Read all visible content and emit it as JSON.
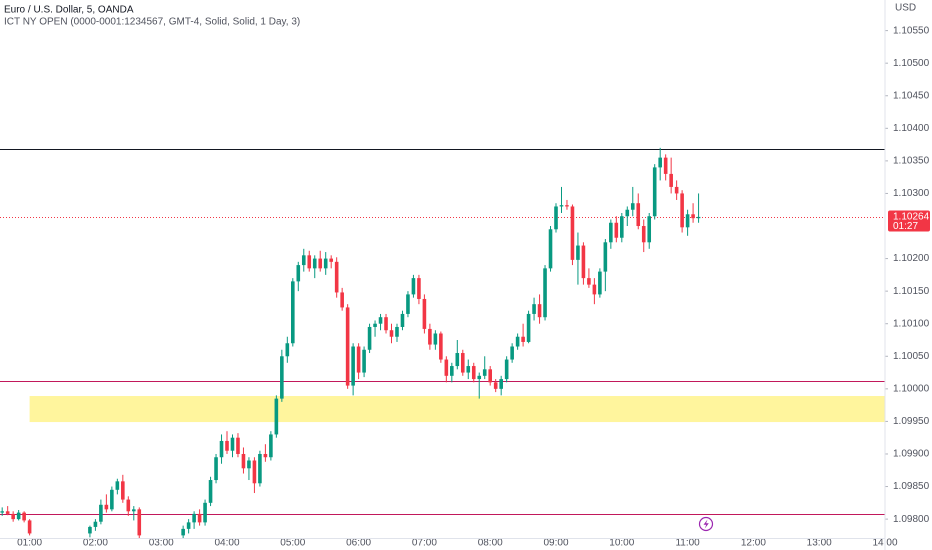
{
  "chart_data": {
    "type": "candlestick",
    "title": "Euro / U.S. Dollar, 5, OANDA",
    "subtitle": "ICT NY OPEN (0000-0001:1234567, GMT-4, Solid, Solid, 1 Day, 3)",
    "currency": "USD",
    "up_color": "#089981",
    "down_color": "#f23645",
    "xlim": [
      "00:33",
      "14:00"
    ],
    "xticks": [
      "01:00",
      "02:00",
      "03:00",
      "04:00",
      "05:00",
      "06:00",
      "07:00",
      "08:00",
      "09:00",
      "10:00",
      "11:00",
      "12:00",
      "13:00",
      "14:00"
    ],
    "ylim": [
      1.09771,
      1.10597
    ],
    "yticks": [
      {
        "value": 1.1055,
        "label": "1.10550"
      },
      {
        "value": 1.105,
        "label": "1.10500"
      },
      {
        "value": 1.1045,
        "label": "1.10450"
      },
      {
        "value": 1.104,
        "label": "1.10400"
      },
      {
        "value": 1.1035,
        "label": "1.10350"
      },
      {
        "value": 1.103,
        "label": "1.10300"
      },
      {
        "value": 1.102,
        "label": "1.10200"
      },
      {
        "value": 1.1015,
        "label": "1.10150"
      },
      {
        "value": 1.101,
        "label": "1.10100"
      },
      {
        "value": 1.1005,
        "label": "1.10050"
      },
      {
        "value": 1.1,
        "label": "1.10000"
      },
      {
        "value": 1.0995,
        "label": "1.09950"
      },
      {
        "value": 1.099,
        "label": "1.09900"
      },
      {
        "value": 1.0985,
        "label": "1.09850"
      },
      {
        "value": 1.098,
        "label": "1.09800"
      }
    ],
    "levels": [
      {
        "value": 1.10368,
        "color": "#131722"
      },
      {
        "value": 1.10012,
        "color": "#c2185b"
      },
      {
        "value": 1.09808,
        "color": "#c2185b"
      }
    ],
    "zone": {
      "low": 1.09949,
      "high": 1.09989,
      "start": "01:00",
      "color": "#fff59d"
    },
    "last_price": {
      "value": 1.10264,
      "countdown": "01:27",
      "color": "#f23645"
    },
    "x": [
      "00:35",
      "00:40",
      "00:45",
      "00:50",
      "00:55",
      "01:00",
      "01:55",
      "02:00",
      "02:05",
      "02:10",
      "02:15",
      "02:20",
      "02:25",
      "02:30",
      "02:35",
      "02:40",
      "03:20",
      "03:25",
      "03:30",
      "03:35",
      "03:40",
      "03:45",
      "03:50",
      "03:55",
      "04:00",
      "04:05",
      "04:10",
      "04:15",
      "04:20",
      "04:25",
      "04:30",
      "04:35",
      "04:40",
      "04:45",
      "04:50",
      "04:55",
      "05:00",
      "05:05",
      "05:10",
      "05:15",
      "05:20",
      "05:25",
      "05:30",
      "05:35",
      "05:40",
      "05:45",
      "05:50",
      "05:55",
      "06:00",
      "06:05",
      "06:10",
      "06:15",
      "06:20",
      "06:25",
      "06:30",
      "06:35",
      "06:40",
      "06:45",
      "06:50",
      "06:55",
      "07:00",
      "07:05",
      "07:10",
      "07:15",
      "07:20",
      "07:25",
      "07:30",
      "07:35",
      "07:40",
      "07:45",
      "07:50",
      "07:55",
      "08:00",
      "08:05",
      "08:10",
      "08:15",
      "08:20",
      "08:25",
      "08:30",
      "08:35",
      "08:40",
      "08:45",
      "08:50",
      "08:55",
      "09:00",
      "09:05",
      "09:10",
      "09:15",
      "09:20",
      "09:25",
      "09:30",
      "09:35",
      "09:40",
      "09:45",
      "09:50",
      "09:55",
      "10:00",
      "10:05",
      "10:10",
      "10:15",
      "10:20",
      "10:25",
      "10:30",
      "10:35",
      "10:40",
      "10:45",
      "10:50",
      "10:55",
      "11:00",
      "11:05",
      "11:10"
    ],
    "open": [
      1.0981,
      1.09812,
      1.09808,
      1.098,
      1.0981,
      1.09798,
      1.09778,
      1.09788,
      1.09796,
      1.09822,
      1.09815,
      1.09845,
      1.09858,
      1.0983,
      1.09812,
      1.09815,
      1.09775,
      1.09785,
      1.09795,
      1.09808,
      1.09795,
      1.09825,
      1.0986,
      1.09895,
      1.0992,
      1.09905,
      1.09925,
      1.099,
      1.09878,
      1.0989,
      1.09855,
      1.099,
      1.09895,
      1.0993,
      1.09985,
      1.1005,
      1.1007,
      1.10165,
      1.1019,
      1.10205,
      1.10185,
      1.102,
      1.10185,
      1.102,
      1.10195,
      1.10148,
      1.10125,
      1.10005,
      1.10065,
      1.10025,
      1.1006,
      1.10095,
      1.101,
      1.1011,
      1.1009,
      1.1008,
      1.10095,
      1.10115,
      1.10145,
      1.1017,
      1.10138,
      1.10092,
      1.10068,
      1.10085,
      1.10045,
      1.1002,
      1.10035,
      1.10055,
      1.10025,
      1.10035,
      1.10015,
      1.1002,
      1.1003,
      1.1001,
      1.1,
      1.10015,
      1.10045,
      1.10065,
      1.1008,
      1.10072,
      1.10115,
      1.1013,
      1.1011,
      1.10185,
      1.10245,
      1.1028,
      1.10282,
      1.1028,
      1.10198,
      1.1022,
      1.1017,
      1.1016,
      1.10145,
      1.1018,
      1.10225,
      1.10255,
      1.10232,
      1.10265,
      1.10275,
      1.10285,
      1.1025,
      1.10225,
      1.10265,
      1.1034,
      1.10355,
      1.1033,
      1.1031,
      1.103,
      1.10248,
      1.10268,
      1.10262
    ],
    "high": [
      1.09818,
      1.0982,
      1.09812,
      1.09814,
      1.09812,
      1.098,
      1.0979,
      1.098,
      1.0983,
      1.09838,
      1.0985,
      1.09862,
      1.09868,
      1.09835,
      1.0982,
      1.09818,
      1.0979,
      1.098,
      1.09812,
      1.09815,
      1.0983,
      1.09865,
      1.099,
      1.0993,
      1.09935,
      1.0993,
      1.09932,
      1.0991,
      1.09895,
      1.09895,
      1.09905,
      1.09915,
      1.09935,
      1.0999,
      1.1006,
      1.1008,
      1.1017,
      1.10195,
      1.10215,
      1.10212,
      1.10205,
      1.10212,
      1.1021,
      1.10205,
      1.10202,
      1.10155,
      1.1013,
      1.1007,
      1.1007,
      1.10065,
      1.101,
      1.10105,
      1.10115,
      1.10115,
      1.101,
      1.101,
      1.1012,
      1.1015,
      1.10175,
      1.10175,
      1.10145,
      1.101,
      1.1009,
      1.10088,
      1.1005,
      1.1004,
      1.10075,
      1.1006,
      1.10045,
      1.1004,
      1.10025,
      1.1005,
      1.10035,
      1.10015,
      1.1002,
      1.1005,
      1.1007,
      1.10085,
      1.101,
      1.1012,
      1.1014,
      1.10145,
      1.1019,
      1.1025,
      1.10285,
      1.1031,
      1.1029,
      1.10283,
      1.1024,
      1.10225,
      1.10185,
      1.1017,
      1.10185,
      1.1023,
      1.1026,
      1.10265,
      1.1027,
      1.1028,
      1.1031,
      1.103,
      1.1026,
      1.1027,
      1.10345,
      1.1037,
      1.1036,
      1.10355,
      1.1032,
      1.10305,
      1.10275,
      1.10285,
      1.103
    ],
    "low": [
      1.09805,
      1.09806,
      1.09796,
      1.09798,
      1.09795,
      1.09775,
      1.09772,
      1.09782,
      1.09792,
      1.0981,
      1.09812,
      1.09838,
      1.09825,
      1.09805,
      1.09798,
      1.0977,
      1.0977,
      1.09778,
      1.09785,
      1.0979,
      1.0979,
      1.0982,
      1.09855,
      1.09885,
      1.099,
      1.09895,
      1.09895,
      1.0987,
      1.0986,
      1.0984,
      1.0985,
      1.09888,
      1.0989,
      1.09925,
      1.0998,
      1.1004,
      1.10065,
      1.1015,
      1.1018,
      1.1018,
      1.1017,
      1.1018,
      1.10175,
      1.10185,
      1.1014,
      1.1012,
      1.1,
      1.0999,
      1.10015,
      1.10018,
      1.10055,
      1.1008,
      1.1009,
      1.10085,
      1.1007,
      1.10072,
      1.1009,
      1.1011,
      1.1014,
      1.1013,
      1.10085,
      1.1006,
      1.1006,
      1.1004,
      1.1001,
      1.1001,
      1.1003,
      1.1002,
      1.10015,
      1.1001,
      1.09985,
      1.10015,
      1.10005,
      1.09995,
      1.0999,
      1.1001,
      1.1004,
      1.1006,
      1.10065,
      1.1007,
      1.10105,
      1.101,
      1.10105,
      1.1018,
      1.1024,
      1.1027,
      1.10275,
      1.1019,
      1.1016,
      1.1016,
      1.10155,
      1.1013,
      1.1014,
      1.1015,
      1.10215,
      1.10225,
      1.10225,
      1.1025,
      1.10265,
      1.10245,
      1.1021,
      1.10215,
      1.1026,
      1.1032,
      1.1032,
      1.103,
      1.1029,
      1.1024,
      1.10235,
      1.10255,
      1.10255
    ],
    "close": [
      1.09812,
      1.09808,
      1.098,
      1.0981,
      1.09798,
      1.09778,
      1.09788,
      1.09796,
      1.09822,
      1.09815,
      1.09845,
      1.09858,
      1.0983,
      1.09812,
      1.09815,
      1.09775,
      1.09785,
      1.09795,
      1.09808,
      1.09795,
      1.09825,
      1.0986,
      1.09895,
      1.0992,
      1.09905,
      1.09925,
      1.099,
      1.09878,
      1.0989,
      1.09855,
      1.099,
      1.09895,
      1.0993,
      1.09985,
      1.1005,
      1.1007,
      1.10165,
      1.1019,
      1.10205,
      1.10185,
      1.102,
      1.10185,
      1.102,
      1.10195,
      1.10148,
      1.10125,
      1.10005,
      1.10065,
      1.10025,
      1.1006,
      1.10095,
      1.101,
      1.1011,
      1.1009,
      1.1008,
      1.10095,
      1.10115,
      1.10145,
      1.1017,
      1.10138,
      1.10092,
      1.10068,
      1.10085,
      1.10045,
      1.1002,
      1.10035,
      1.10055,
      1.10025,
      1.10035,
      1.10015,
      1.1002,
      1.1003,
      1.1001,
      1.1,
      1.10015,
      1.10045,
      1.10065,
      1.1008,
      1.10072,
      1.10115,
      1.1013,
      1.1011,
      1.10185,
      1.10245,
      1.1028,
      1.10282,
      1.1028,
      1.10198,
      1.1022,
      1.1017,
      1.1016,
      1.10145,
      1.1018,
      1.10225,
      1.10255,
      1.10232,
      1.10265,
      1.10275,
      1.10285,
      1.1025,
      1.10225,
      1.10265,
      1.1034,
      1.10355,
      1.1033,
      1.1031,
      1.103,
      1.10248,
      1.10268,
      1.10262,
      1.10264
    ]
  }
}
